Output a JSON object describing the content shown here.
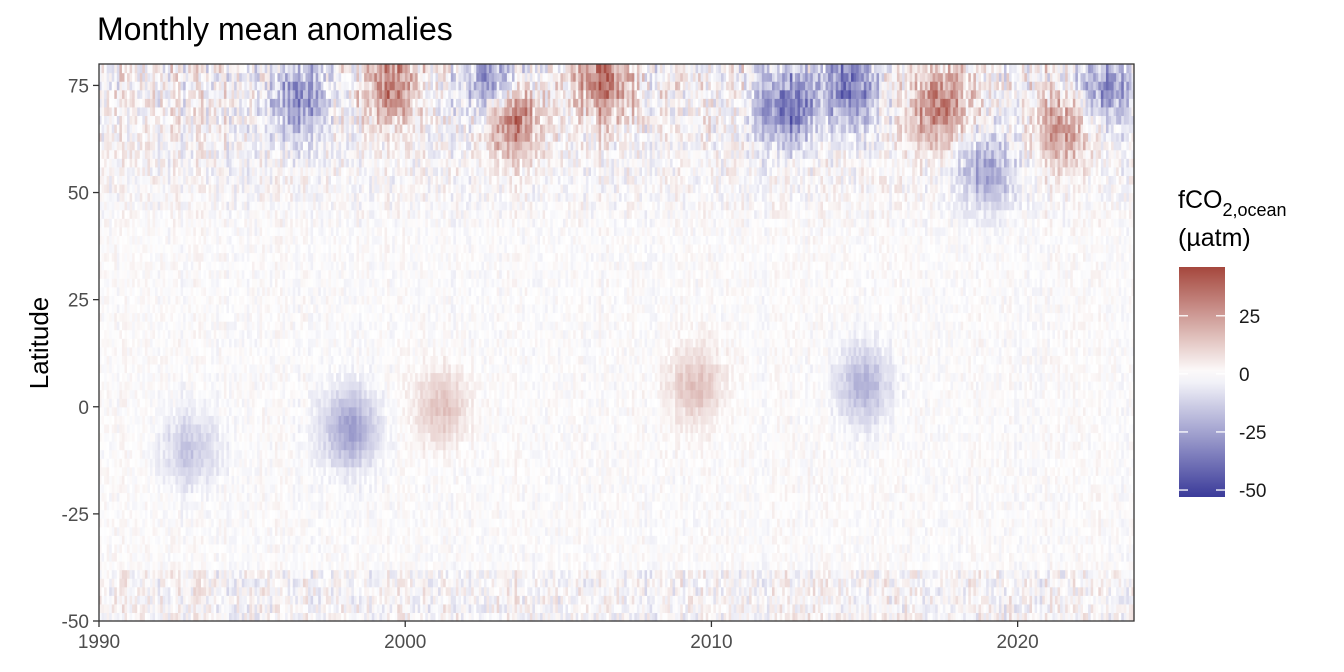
{
  "chart_data": {
    "type": "heatmap",
    "title": "Monthly mean anomalies",
    "xlabel": "",
    "ylabel": "Latitude",
    "xlim": [
      1990,
      2023.8
    ],
    "ylim": [
      -50,
      80
    ],
    "x_ticks": [
      1990,
      2000,
      2010,
      2020
    ],
    "y_ticks": [
      -50,
      -25,
      0,
      25,
      50,
      75
    ],
    "legend": {
      "title_main": "fCO",
      "title_sub": "2,ocean",
      "unit": "(µatm)",
      "ticks": [
        -50,
        -25,
        0,
        25
      ],
      "range": [
        -53,
        46
      ],
      "colors": {
        "low": "#3b3b9a",
        "mid": "#ffffff",
        "high": "#a5473d"
      },
      "position": "right"
    },
    "features": [
      {
        "x": 1998.2,
        "y": -5,
        "value": -25
      },
      {
        "x": 2001.2,
        "y": 0,
        "value": 15
      },
      {
        "x": 2003.5,
        "y": 68,
        "value": 40
      },
      {
        "x": 2003.0,
        "y": 76,
        "value": -35
      },
      {
        "x": 1996.5,
        "y": 72,
        "value": -30
      },
      {
        "x": 2006.5,
        "y": 76,
        "value": 35
      },
      {
        "x": 2012.5,
        "y": 70,
        "value": -40
      },
      {
        "x": 2014.5,
        "y": 75,
        "value": -38
      },
      {
        "x": 2017.5,
        "y": 70,
        "value": 35
      },
      {
        "x": 2009.5,
        "y": 5,
        "value": 15
      },
      {
        "x": 2015.0,
        "y": 5,
        "value": -20
      },
      {
        "x": 1993.0,
        "y": -10,
        "value": -15
      },
      {
        "x": 2019.0,
        "y": 55,
        "value": -25
      },
      {
        "x": 2021.5,
        "y": 65,
        "value": 25
      },
      {
        "x": 1999.5,
        "y": 75,
        "value": 30
      },
      {
        "x": 2022.8,
        "y": 75,
        "value": -30
      }
    ]
  }
}
